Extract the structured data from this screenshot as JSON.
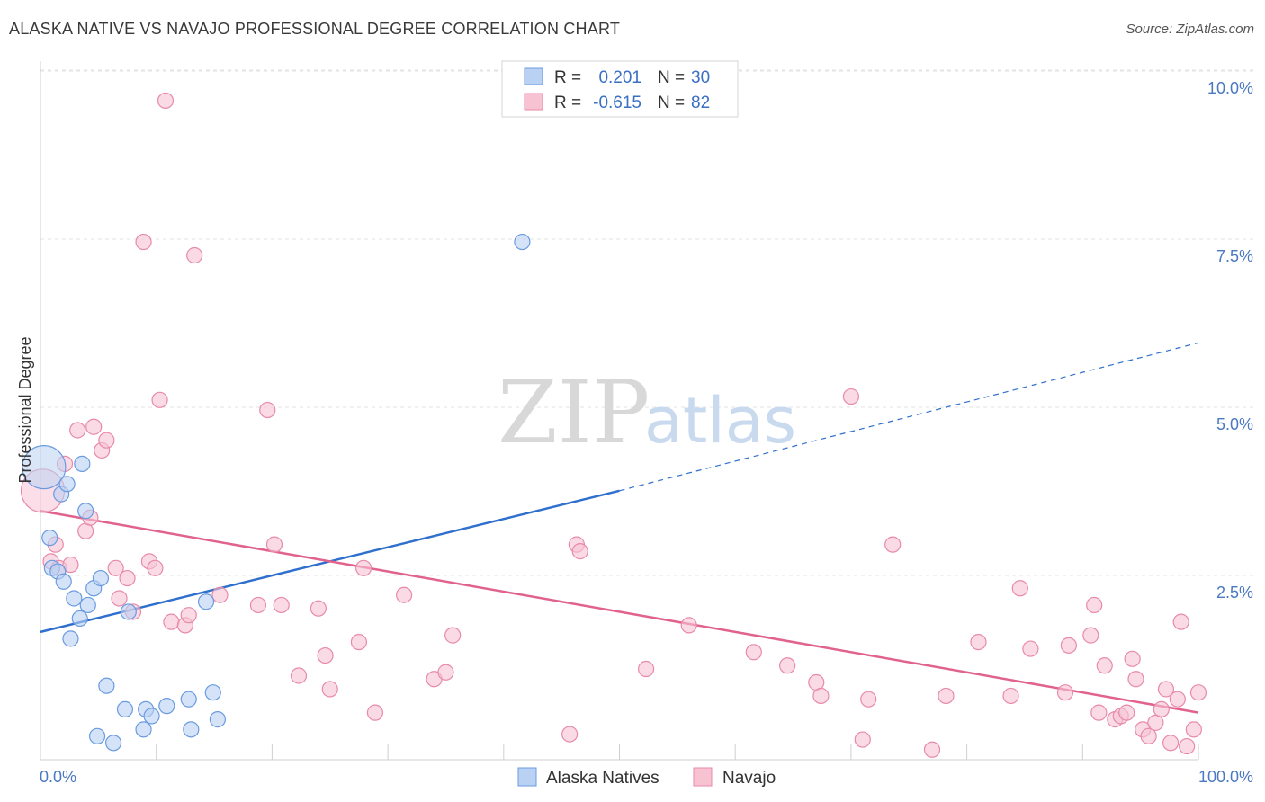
{
  "chart_data": {
    "type": "scatter",
    "title": "ALASKA NATIVE VS NAVAJO PROFESSIONAL DEGREE CORRELATION CHART",
    "source": "Source: ZipAtlas.com",
    "ylabel": "Professional Degree",
    "xlabel": "",
    "xlim": [
      0,
      100
    ],
    "ylim": [
      0,
      10.5
    ],
    "x_tick_labels": [
      "0.0%",
      "100.0%"
    ],
    "y_ticks": [
      2.5,
      5.0,
      7.5,
      10.0
    ],
    "y_tick_labels": [
      "2.5%",
      "5.0%",
      "7.5%",
      "10.0%"
    ],
    "watermark": {
      "part1": "ZIP",
      "part2": "atlas"
    },
    "legend": {
      "rows": [
        {
          "r_label": "R =",
          "r_value": "0.201",
          "n_label": "N =",
          "n_value": "30"
        },
        {
          "r_label": "R =",
          "r_value": "-0.615",
          "n_label": "N =",
          "n_value": "82"
        }
      ]
    },
    "series": [
      {
        "name": "Alaska Natives",
        "color": "#6a9be0",
        "fill": "#b9d1f3",
        "trend": {
          "x0": 0,
          "y0": 1.9,
          "x1": 50,
          "y1": 4.0,
          "dash_x1": 100,
          "dash_y1": 6.2,
          "color": "#2f6fcd"
        },
        "points": [
          {
            "x": 0.3,
            "y": 4.35,
            "big": true
          },
          {
            "x": 1.0,
            "y": 2.85
          },
          {
            "x": 1.5,
            "y": 2.8
          },
          {
            "x": 0.8,
            "y": 3.3
          },
          {
            "x": 1.8,
            "y": 3.95
          },
          {
            "x": 2.3,
            "y": 4.1
          },
          {
            "x": 2.0,
            "y": 2.65
          },
          {
            "x": 2.9,
            "y": 2.4
          },
          {
            "x": 3.4,
            "y": 2.1
          },
          {
            "x": 3.6,
            "y": 4.4
          },
          {
            "x": 3.9,
            "y": 3.7
          },
          {
            "x": 4.1,
            "y": 2.3
          },
          {
            "x": 4.6,
            "y": 2.55
          },
          {
            "x": 2.6,
            "y": 1.8
          },
          {
            "x": 5.2,
            "y": 2.7
          },
          {
            "x": 5.7,
            "y": 1.1
          },
          {
            "x": 4.9,
            "y": 0.35
          },
          {
            "x": 6.3,
            "y": 0.25
          },
          {
            "x": 7.3,
            "y": 0.75
          },
          {
            "x": 7.6,
            "y": 2.2
          },
          {
            "x": 8.9,
            "y": 0.45
          },
          {
            "x": 9.1,
            "y": 0.75
          },
          {
            "x": 9.6,
            "y": 0.65
          },
          {
            "x": 10.9,
            "y": 0.8
          },
          {
            "x": 12.8,
            "y": 0.9
          },
          {
            "x": 13.0,
            "y": 0.45
          },
          {
            "x": 14.3,
            "y": 2.35
          },
          {
            "x": 14.9,
            "y": 1.0
          },
          {
            "x": 15.3,
            "y": 0.6
          },
          {
            "x": 41.6,
            "y": 7.7
          }
        ]
      },
      {
        "name": "Navajo",
        "color": "#e88aa8",
        "fill": "#f7c3d3",
        "trend": {
          "x0": 0,
          "y0": 3.7,
          "x1": 100,
          "y1": 0.7,
          "color": "#e0628d"
        },
        "points": [
          {
            "x": 0.2,
            "y": 4.0,
            "big": true
          },
          {
            "x": 0.9,
            "y": 2.95
          },
          {
            "x": 1.3,
            "y": 3.2
          },
          {
            "x": 1.6,
            "y": 2.85
          },
          {
            "x": 2.1,
            "y": 4.4
          },
          {
            "x": 2.6,
            "y": 2.9
          },
          {
            "x": 3.2,
            "y": 4.9
          },
          {
            "x": 3.9,
            "y": 3.4
          },
          {
            "x": 4.3,
            "y": 3.6
          },
          {
            "x": 4.6,
            "y": 4.95
          },
          {
            "x": 5.3,
            "y": 4.6
          },
          {
            "x": 5.7,
            "y": 4.75
          },
          {
            "x": 6.5,
            "y": 2.85
          },
          {
            "x": 6.8,
            "y": 2.4
          },
          {
            "x": 7.5,
            "y": 2.7
          },
          {
            "x": 8.0,
            "y": 2.2
          },
          {
            "x": 8.9,
            "y": 7.7
          },
          {
            "x": 9.4,
            "y": 2.95
          },
          {
            "x": 9.9,
            "y": 2.85
          },
          {
            "x": 10.3,
            "y": 5.35
          },
          {
            "x": 10.8,
            "y": 9.8
          },
          {
            "x": 11.3,
            "y": 2.05
          },
          {
            "x": 12.5,
            "y": 2.0
          },
          {
            "x": 12.8,
            "y": 2.15
          },
          {
            "x": 13.3,
            "y": 7.5
          },
          {
            "x": 15.5,
            "y": 2.45
          },
          {
            "x": 18.8,
            "y": 2.3
          },
          {
            "x": 19.6,
            "y": 5.2
          },
          {
            "x": 20.2,
            "y": 3.2
          },
          {
            "x": 20.8,
            "y": 2.3
          },
          {
            "x": 22.3,
            "y": 1.25
          },
          {
            "x": 24.0,
            "y": 2.25
          },
          {
            "x": 24.6,
            "y": 1.55
          },
          {
            "x": 25.0,
            "y": 1.05
          },
          {
            "x": 27.5,
            "y": 1.75
          },
          {
            "x": 27.9,
            "y": 2.85
          },
          {
            "x": 28.9,
            "y": 0.7
          },
          {
            "x": 31.4,
            "y": 2.45
          },
          {
            "x": 34.0,
            "y": 1.2
          },
          {
            "x": 35.0,
            "y": 1.3
          },
          {
            "x": 35.6,
            "y": 1.85
          },
          {
            "x": 45.7,
            "y": 0.38
          },
          {
            "x": 46.3,
            "y": 3.2
          },
          {
            "x": 46.6,
            "y": 3.1
          },
          {
            "x": 52.3,
            "y": 1.35
          },
          {
            "x": 56.0,
            "y": 2.0
          },
          {
            "x": 61.6,
            "y": 1.6
          },
          {
            "x": 64.5,
            "y": 1.4
          },
          {
            "x": 67.0,
            "y": 1.15
          },
          {
            "x": 67.4,
            "y": 0.95
          },
          {
            "x": 70.0,
            "y": 5.4
          },
          {
            "x": 71.0,
            "y": 0.3
          },
          {
            "x": 71.5,
            "y": 0.9
          },
          {
            "x": 73.6,
            "y": 3.2
          },
          {
            "x": 77.0,
            "y": 0.15
          },
          {
            "x": 78.2,
            "y": 0.95
          },
          {
            "x": 81.0,
            "y": 1.75
          },
          {
            "x": 83.8,
            "y": 0.95
          },
          {
            "x": 84.6,
            "y": 2.55
          },
          {
            "x": 85.5,
            "y": 1.65
          },
          {
            "x": 88.5,
            "y": 1.0
          },
          {
            "x": 88.8,
            "y": 1.7
          },
          {
            "x": 90.7,
            "y": 1.85
          },
          {
            "x": 91.0,
            "y": 2.3
          },
          {
            "x": 91.4,
            "y": 0.7
          },
          {
            "x": 91.9,
            "y": 1.4
          },
          {
            "x": 92.8,
            "y": 0.6
          },
          {
            "x": 93.3,
            "y": 0.65
          },
          {
            "x": 93.8,
            "y": 0.7
          },
          {
            "x": 94.3,
            "y": 1.5
          },
          {
            "x": 94.6,
            "y": 1.2
          },
          {
            "x": 95.2,
            "y": 0.45
          },
          {
            "x": 95.7,
            "y": 0.35
          },
          {
            "x": 96.3,
            "y": 0.55
          },
          {
            "x": 96.8,
            "y": 0.75
          },
          {
            "x": 97.2,
            "y": 1.05
          },
          {
            "x": 97.6,
            "y": 0.25
          },
          {
            "x": 98.2,
            "y": 0.9
          },
          {
            "x": 98.5,
            "y": 2.05
          },
          {
            "x": 99.0,
            "y": 0.2
          },
          {
            "x": 99.6,
            "y": 0.45
          },
          {
            "x": 100.0,
            "y": 1.0
          }
        ]
      }
    ]
  }
}
